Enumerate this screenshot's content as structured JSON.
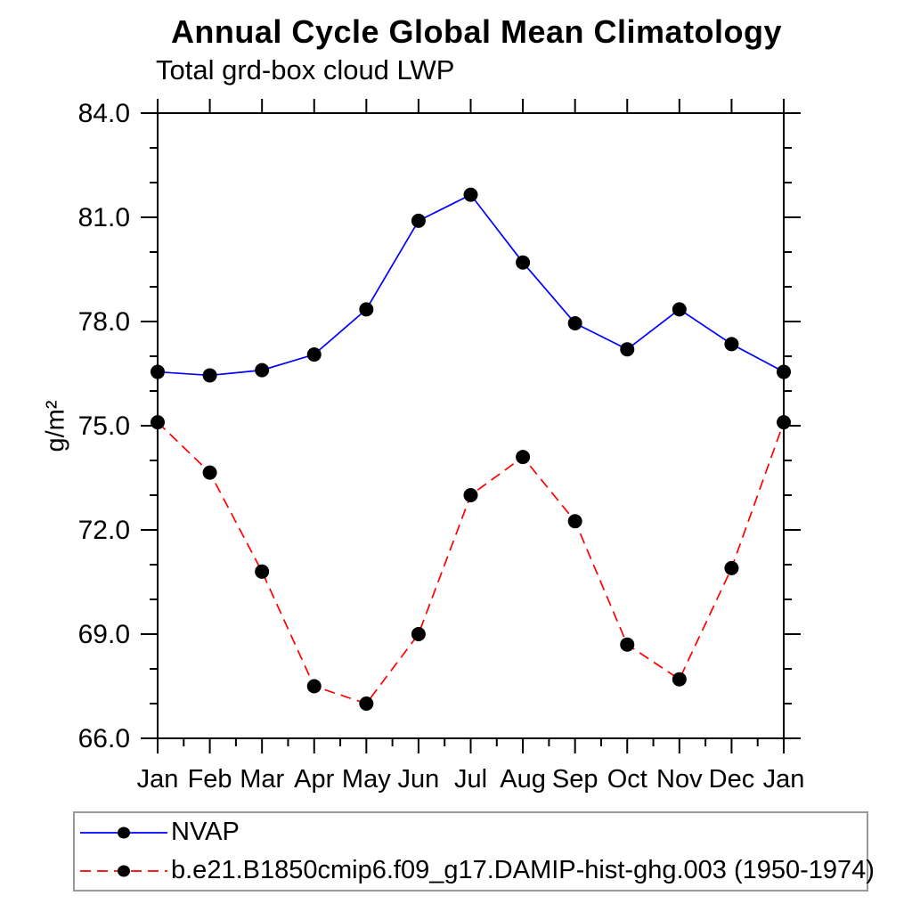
{
  "chart_data": {
    "type": "line",
    "title": "Annual Cycle Global Mean Climatology",
    "subtitle": "Total grd-box cloud LWP",
    "ylabel": "g/m²",
    "xlabel": "",
    "categories": [
      "Jan",
      "Feb",
      "Mar",
      "Apr",
      "May",
      "Jun",
      "Jul",
      "Aug",
      "Sep",
      "Oct",
      "Nov",
      "Dec",
      "Jan"
    ],
    "ylim": [
      66.0,
      84.0
    ],
    "ytick_major_values": [
      66,
      69,
      72,
      75,
      78,
      81,
      84
    ],
    "ytick_labels": [
      "66.0",
      "69.0",
      "72.0",
      "75.0",
      "78.0",
      "81.0",
      "84.0"
    ],
    "ytick_minor_step": 1,
    "grid": false,
    "legend_position": "bottom",
    "axis_color": "#000000",
    "marker_color": "#000000",
    "series": [
      {
        "name": "NVAP",
        "color": "#0000ff",
        "style": "solid",
        "marker": "circle",
        "values": [
          76.55,
          76.45,
          76.6,
          77.05,
          78.35,
          80.9,
          81.65,
          79.7,
          77.95,
          77.2,
          78.35,
          77.35,
          76.55
        ]
      },
      {
        "name": "b.e21.B1850cmip6.f09_g17.DAMIP-hist-ghg.003 (1950-1974)",
        "color": "#ff0000",
        "style": "dashed",
        "marker": "circle",
        "values": [
          75.1,
          73.65,
          70.8,
          67.5,
          67.0,
          69.0,
          73.0,
          74.1,
          72.25,
          68.7,
          67.7,
          70.9,
          75.1
        ]
      }
    ]
  }
}
